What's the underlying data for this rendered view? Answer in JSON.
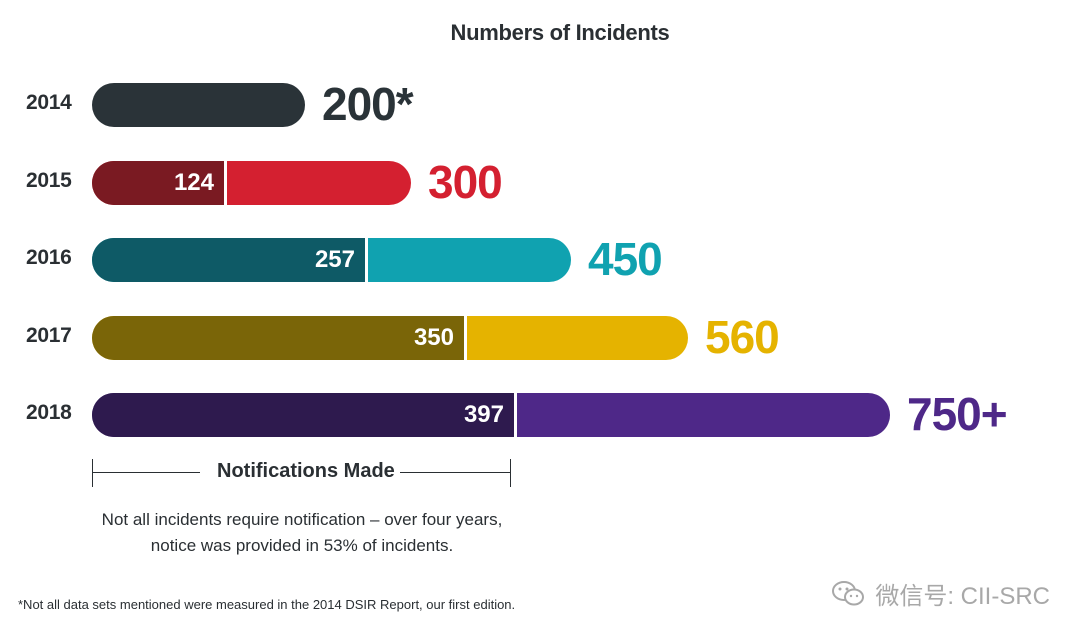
{
  "chart_data": {
    "type": "bar",
    "title": "Numbers of Incidents",
    "categories": [
      "2014",
      "2015",
      "2016",
      "2017",
      "2018"
    ],
    "series": [
      {
        "name": "Notifications Made",
        "values": [
          null,
          124,
          257,
          350,
          397
        ]
      },
      {
        "values": [
          200,
          300,
          450,
          560,
          750
        ]
      }
    ],
    "total_labels": [
      "200*",
      "300",
      "450",
      "560",
      "750+"
    ],
    "colors": {
      "2014": {
        "dark": "#2a3338",
        "light": "#2a3338"
      },
      "2015": {
        "dark": "#7a1a22",
        "light": "#d42030"
      },
      "2016": {
        "dark": "#0e5a66",
        "light": "#10a2b0"
      },
      "2017": {
        "dark": "#7a6508",
        "light": "#e5b300"
      },
      "2018": {
        "dark": "#2e1a4e",
        "light": "#4e2888"
      }
    },
    "xlim": [
      0,
      750
    ],
    "orientation": "horizontal",
    "grid": false
  },
  "bracket_label": "Notifications Made",
  "note": [
    "Not all incidents require notification – over four years,",
    "notice was provided in 53% of incidents."
  ],
  "footnote": "*Not all data sets mentioned were measured in the 2014 DSIR Report, our first edition.",
  "watermark": "微信号: CII-SRC"
}
